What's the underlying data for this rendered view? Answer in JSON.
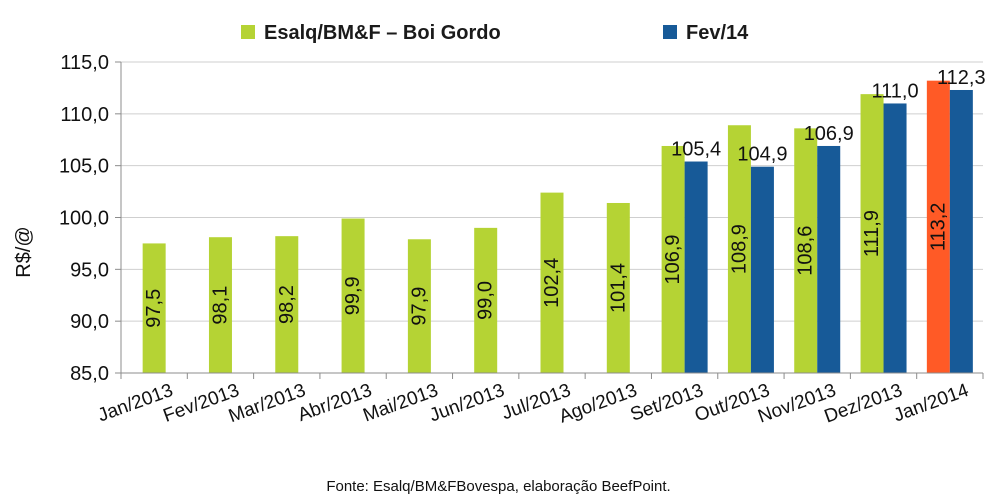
{
  "source_note": "Fonte:  Esalq/BM&FBovespa,  elaboração  BeefPoint.",
  "colors": {
    "esalq": "#b5d334",
    "fev14": "#175a98",
    "highlight": "#ff5a26",
    "grid": "#cfcfcf",
    "axis": "#8c8c8c"
  },
  "chart_data": {
    "type": "bar",
    "title": "",
    "xlabel": "",
    "ylabel": "R$/@",
    "ylim": [
      85,
      115
    ],
    "yticks": [
      "85,0",
      "90,0",
      "95,0",
      "100,0",
      "105,0",
      "110,0",
      "115,0"
    ],
    "ytick_values": [
      85,
      90,
      95,
      100,
      105,
      110,
      115
    ],
    "grid": true,
    "legend": "top",
    "categories": [
      "Jan/2013",
      "Fev/2013",
      "Mar/2013",
      "Abr/2013",
      "Mai/2013",
      "Jun/2013",
      "Jul/2013",
      "Ago/2013",
      "Set/2013",
      "Out/2013",
      "Nov/2013",
      "Dez/2013",
      "Jan/2014"
    ],
    "series": [
      {
        "name": "Esalq/BM&F – Boi Gordo",
        "values": [
          97.5,
          98.1,
          98.2,
          99.9,
          97.9,
          99.0,
          102.4,
          101.4,
          106.9,
          108.9,
          108.6,
          111.9,
          113.2
        ],
        "labels": [
          "97,5",
          "98,1",
          "98,2",
          "99,9",
          "97,9",
          "99,0",
          "102,4",
          "101,4",
          "106,9",
          "108,9",
          "108,6",
          "111,9",
          "113,2"
        ],
        "highlight_index": 12
      },
      {
        "name": "Fev/14",
        "values": [
          null,
          null,
          null,
          null,
          null,
          null,
          null,
          null,
          105.4,
          104.9,
          106.9,
          111.0,
          112.3
        ],
        "labels": [
          null,
          null,
          null,
          null,
          null,
          null,
          null,
          null,
          "105,4",
          "104,9",
          "106,9",
          "111,0",
          "112,3"
        ]
      }
    ]
  }
}
